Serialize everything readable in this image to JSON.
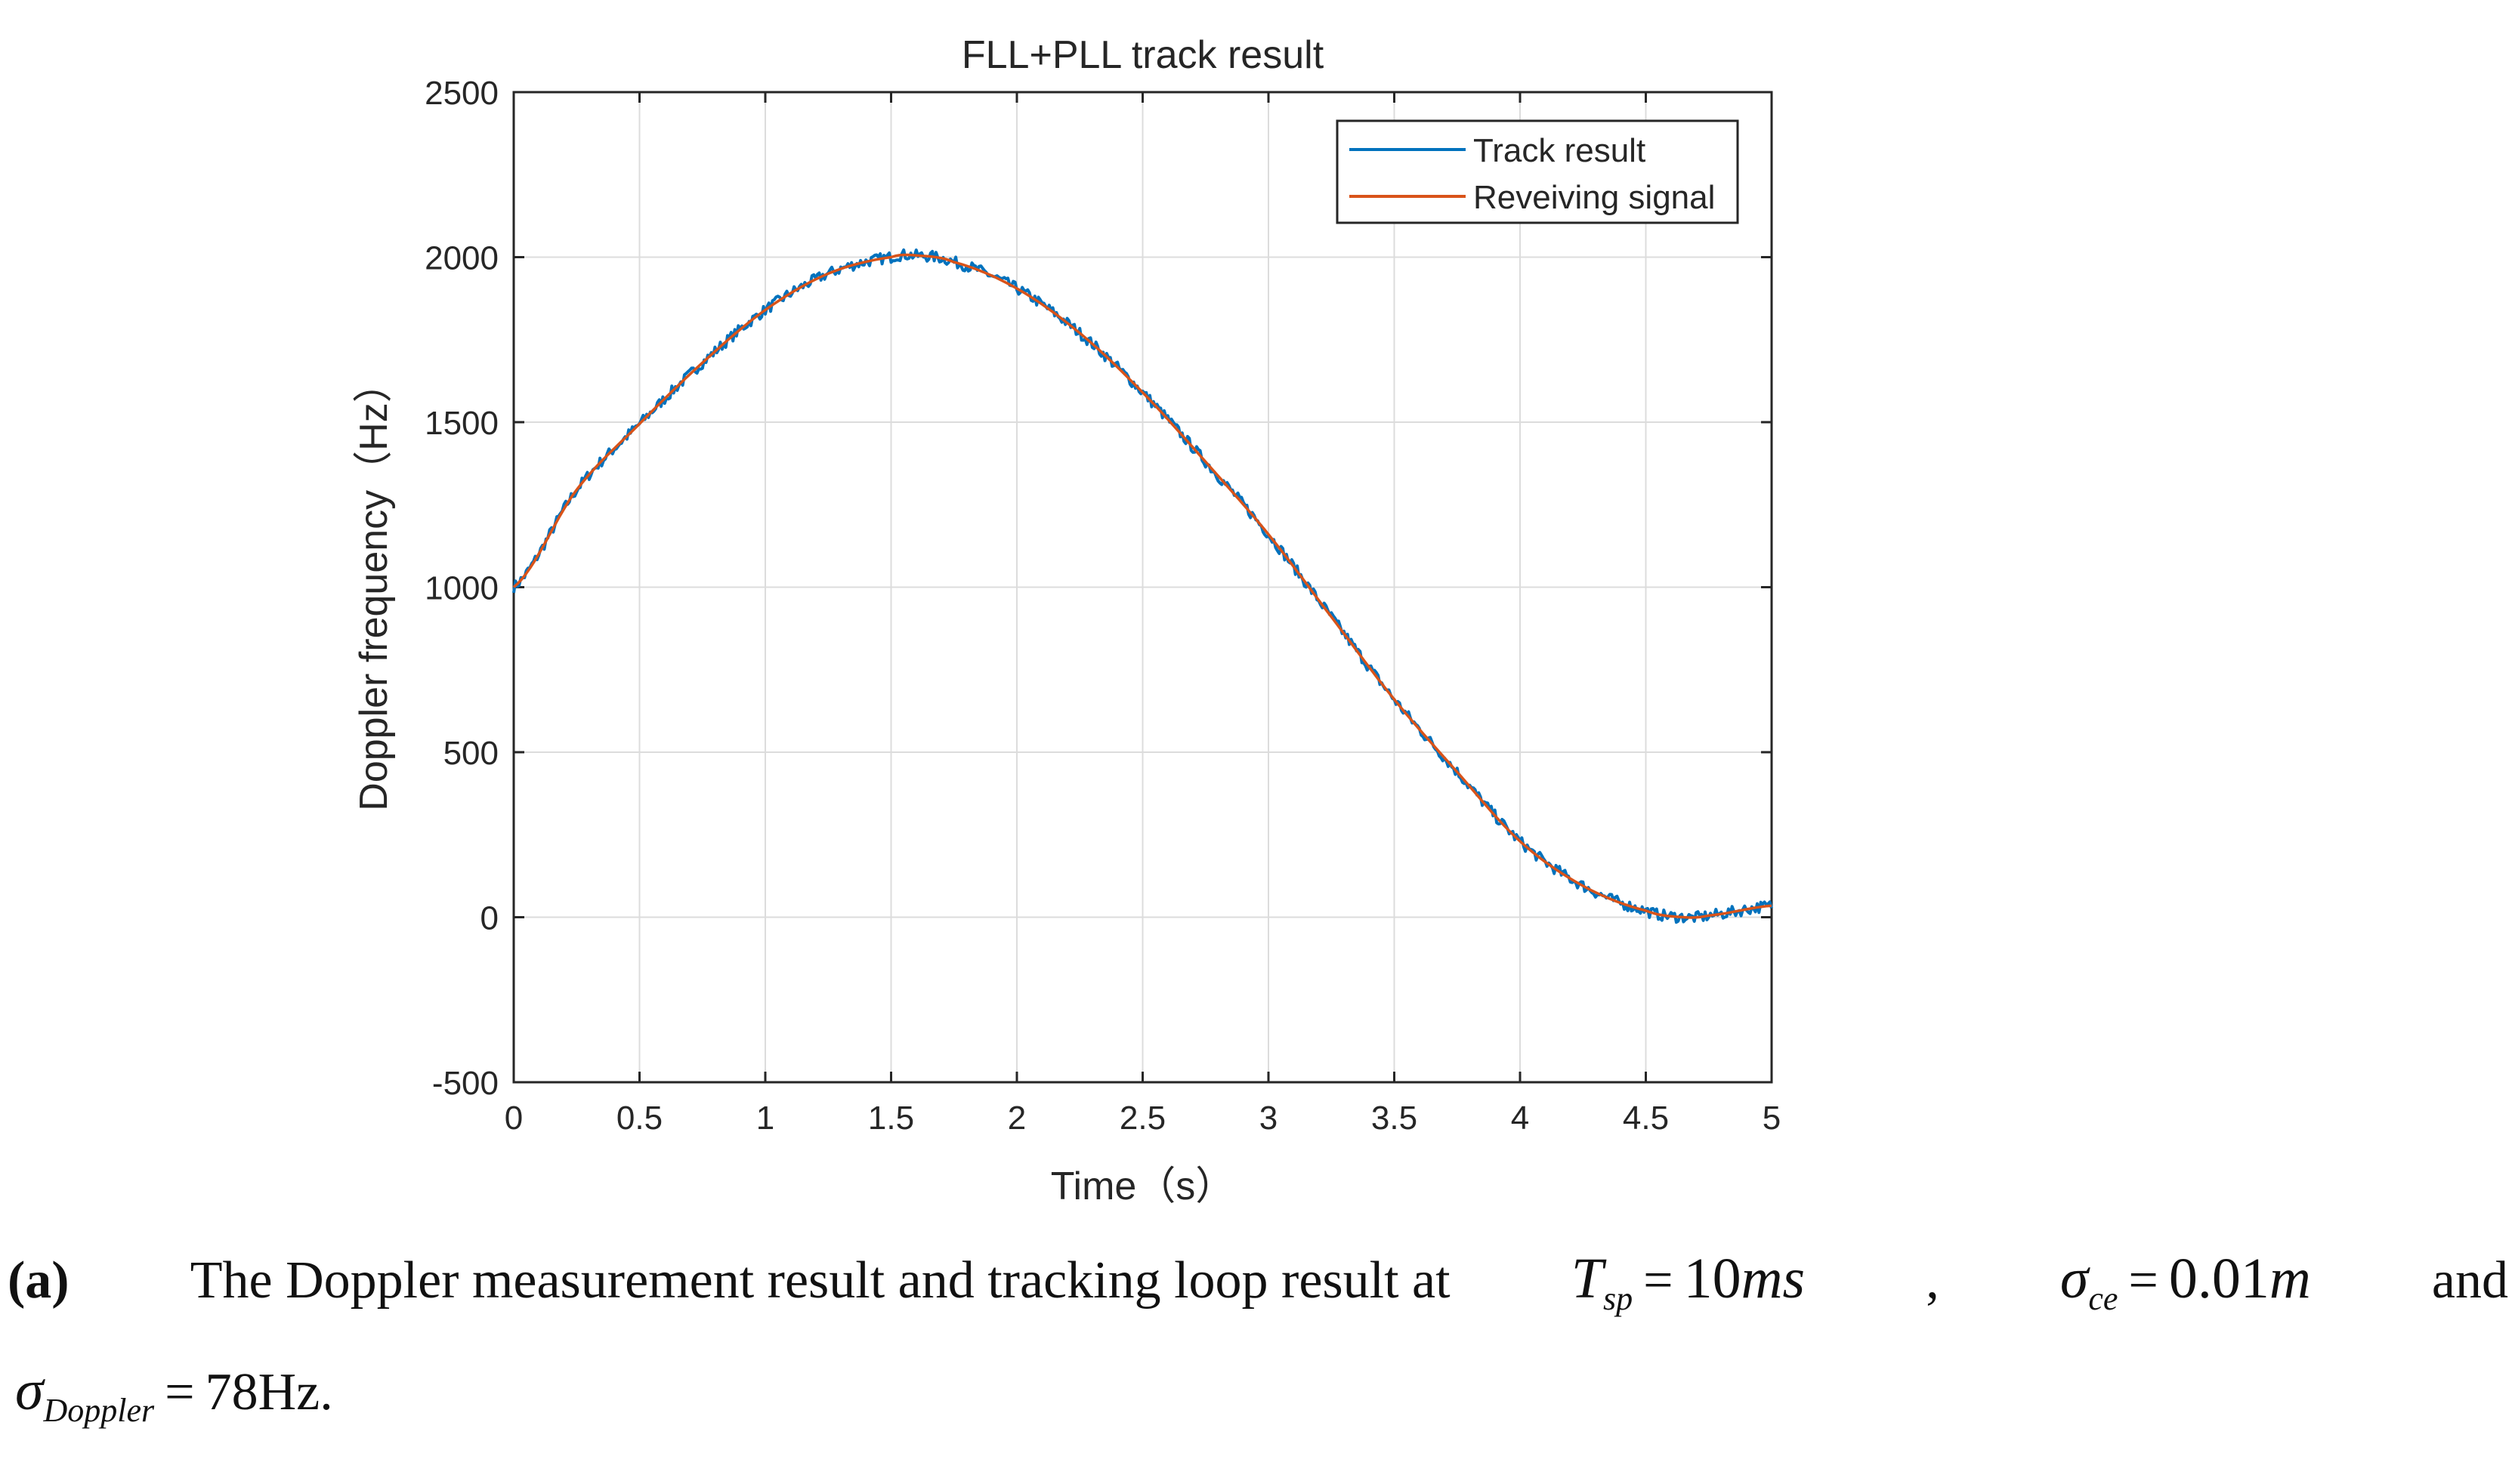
{
  "chart_data": {
    "type": "line",
    "title": "FLL+PLL track result",
    "xlabel": "Time（s）",
    "ylabel": "Doppler frequency（Hz）",
    "xlim": [
      0,
      5
    ],
    "ylim": [
      -500,
      2500
    ],
    "xticks": [
      0,
      0.5,
      1,
      1.5,
      2,
      2.5,
      3,
      3.5,
      4,
      4.5,
      5
    ],
    "xtick_labels": [
      "0",
      "0.5",
      "1",
      "1.5",
      "2",
      "2.5",
      "3",
      "3.5",
      "4",
      "4.5",
      "5"
    ],
    "yticks": [
      -500,
      0,
      500,
      1000,
      1500,
      2000,
      2500
    ],
    "ytick_labels": [
      "-500",
      "0",
      "500",
      "1000",
      "1500",
      "2000",
      "2500"
    ],
    "grid": true,
    "legend_position": "top-right",
    "series": [
      {
        "name": "Track result",
        "color": "#0072BD",
        "style": "noisy",
        "x": [
          0,
          0.25,
          0.5,
          0.75,
          1,
          1.25,
          1.5,
          1.6,
          1.75,
          2,
          2.25,
          2.5,
          2.75,
          3,
          3.25,
          3.5,
          3.75,
          4,
          4.25,
          4.5,
          4.65,
          4.75,
          5
        ],
        "y": [
          1000,
          1295,
          1495,
          1680,
          1840,
          1950,
          2000,
          2005,
          1985,
          1905,
          1770,
          1590,
          1380,
          1160,
          910,
          660,
          440,
          230,
          95,
          20,
          0,
          5,
          35
        ]
      },
      {
        "name": "Reveiving signal",
        "color": "#D95319",
        "style": "smooth",
        "x": [
          0,
          0.25,
          0.5,
          0.75,
          1,
          1.25,
          1.5,
          1.6,
          1.75,
          2,
          2.25,
          2.5,
          2.75,
          3,
          3.25,
          3.5,
          3.75,
          4,
          4.25,
          4.5,
          4.65,
          4.75,
          5
        ],
        "y": [
          1000,
          1295,
          1495,
          1680,
          1840,
          1950,
          2000,
          2005,
          1985,
          1905,
          1770,
          1590,
          1380,
          1160,
          910,
          660,
          440,
          230,
          95,
          20,
          0,
          5,
          35
        ]
      }
    ]
  },
  "caption": {
    "label": "(a)",
    "text": "The Doppler measurement result and tracking loop result at",
    "t_symbol": "T",
    "t_sub": "sp",
    "t_value": "10",
    "t_unit": "ms",
    "sep": ",",
    "sigma_symbol": "σ",
    "ce_sub": "ce",
    "ce_value": "0.01",
    "ce_unit": "m",
    "and_word": "and",
    "doppler_sub": "Doppler",
    "doppler_value": "78Hz",
    "end_mark": "."
  }
}
